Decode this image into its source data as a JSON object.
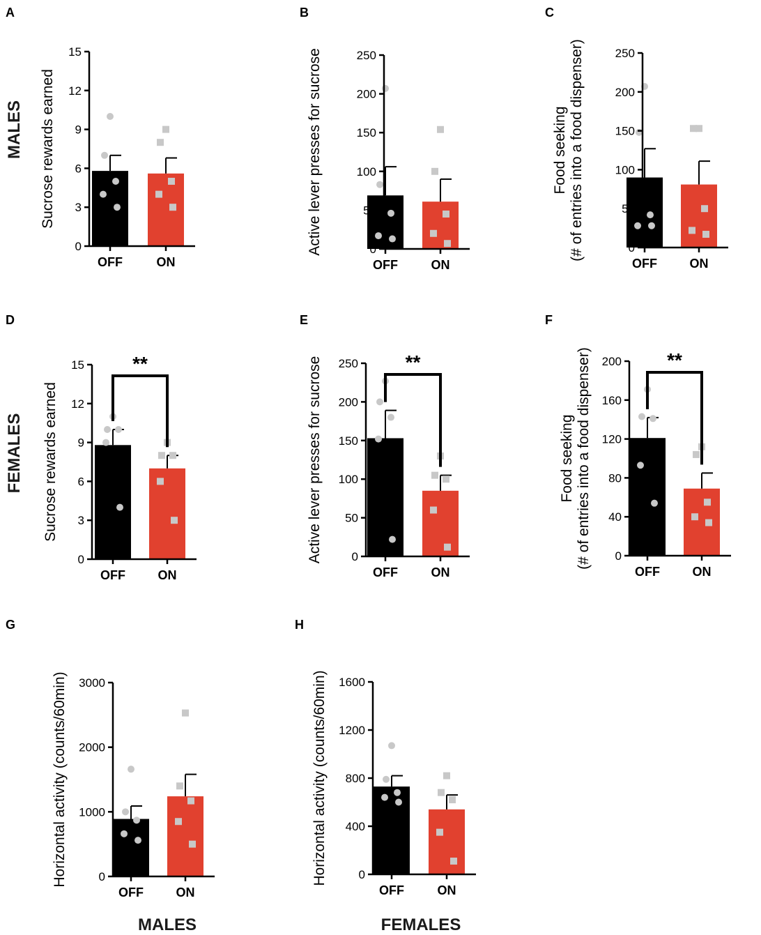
{
  "colors": {
    "off": "#000000",
    "on": "#e1412f",
    "dot": "#c8c8c8"
  },
  "row_labels": {
    "males": "MALES",
    "females": "FEMALES"
  },
  "chart_data": [
    {
      "panel": "A",
      "type": "bar",
      "title": "",
      "ylabel": "Sucrose rewards earned",
      "ylabel_lines": [
        "Sucrose rewards earned"
      ],
      "ylim": [
        0,
        15
      ],
      "yticks": [
        0,
        3,
        6,
        9,
        12,
        15
      ],
      "categories": [
        "OFF",
        "ON"
      ],
      "series": [
        {
          "name": "OFF",
          "mean": 5.8,
          "sem": 1.2,
          "points": [
            10,
            7,
            5,
            4,
            3
          ],
          "marker": "circle"
        },
        {
          "name": "ON",
          "mean": 5.6,
          "sem": 1.2,
          "points": [
            9,
            8,
            5,
            4,
            3
          ],
          "marker": "square"
        }
      ],
      "significance": ""
    },
    {
      "panel": "B",
      "type": "bar",
      "title": "",
      "ylabel": "Active lever presses for sucrose",
      "ylabel_lines": [
        "Active lever presses for sucrose"
      ],
      "ylim": [
        0,
        250
      ],
      "yticks": [
        0,
        50,
        100,
        150,
        200,
        250
      ],
      "categories": [
        "OFF",
        "ON"
      ],
      "series": [
        {
          "name": "OFF",
          "mean": 69,
          "sem": 37,
          "points": [
            207,
            83,
            46,
            17,
            13
          ],
          "marker": "circle"
        },
        {
          "name": "ON",
          "mean": 61,
          "sem": 29,
          "points": [
            154,
            100,
            45,
            20,
            7
          ],
          "marker": "square"
        }
      ],
      "significance": ""
    },
    {
      "panel": "C",
      "type": "bar",
      "title": "",
      "ylabel": "Food seeking (# of entries into a food dispenser)",
      "ylabel_lines": [
        "Food seeking",
        "(# of entries into a food dispenser)"
      ],
      "ylim": [
        0,
        250
      ],
      "yticks": [
        0,
        50,
        100,
        150,
        200,
        250
      ],
      "categories": [
        "OFF",
        "ON"
      ],
      "series": [
        {
          "name": "OFF",
          "mean": 90,
          "sem": 37,
          "points": [
            207,
            148,
            42,
            28,
            28
          ],
          "marker": "circle"
        },
        {
          "name": "ON",
          "mean": 81,
          "sem": 30,
          "points": [
            153,
            153,
            50,
            22,
            17
          ],
          "marker": "square"
        }
      ],
      "significance": ""
    },
    {
      "panel": "D",
      "type": "bar",
      "title": "",
      "ylabel": "Sucrose rewards earned",
      "ylabel_lines": [
        "Sucrose rewards earned"
      ],
      "ylim": [
        0,
        15
      ],
      "yticks": [
        0,
        3,
        6,
        9,
        12,
        15
      ],
      "categories": [
        "OFF",
        "ON"
      ],
      "series": [
        {
          "name": "OFF",
          "mean": 8.8,
          "sem": 1.2,
          "points": [
            11,
            10,
            10,
            9,
            4
          ],
          "marker": "circle"
        },
        {
          "name": "ON",
          "mean": 7.0,
          "sem": 1.0,
          "points": [
            9,
            8,
            8,
            6,
            3
          ],
          "marker": "square"
        }
      ],
      "significance": "**"
    },
    {
      "panel": "E",
      "type": "bar",
      "title": "",
      "ylabel": "Active lever presses for sucrose",
      "ylabel_lines": [
        "Active lever presses for sucrose"
      ],
      "ylim": [
        0,
        250
      ],
      "yticks": [
        0,
        50,
        100,
        150,
        200,
        250
      ],
      "categories": [
        "OFF",
        "ON"
      ],
      "series": [
        {
          "name": "OFF",
          "mean": 153,
          "sem": 36,
          "points": [
            227,
            200,
            180,
            152,
            22
          ],
          "marker": "circle"
        },
        {
          "name": "ON",
          "mean": 85,
          "sem": 20,
          "points": [
            130,
            105,
            100,
            60,
            12
          ],
          "marker": "square"
        }
      ],
      "significance": "**"
    },
    {
      "panel": "F",
      "type": "bar",
      "title": "",
      "ylabel": "Food seeking (# of entries into a food dispenser)",
      "ylabel_lines": [
        "Food seeking",
        "(# of entries into a food dispenser)"
      ],
      "ylim": [
        0,
        200
      ],
      "yticks": [
        0,
        40,
        80,
        120,
        160,
        200
      ],
      "categories": [
        "OFF",
        "ON"
      ],
      "series": [
        {
          "name": "OFF",
          "mean": 121,
          "sem": 21,
          "points": [
            171,
            143,
            141,
            93,
            54
          ],
          "marker": "circle"
        },
        {
          "name": "ON",
          "mean": 69,
          "sem": 16,
          "points": [
            112,
            104,
            55,
            40,
            34
          ],
          "marker": "square"
        }
      ],
      "significance": "**"
    },
    {
      "panel": "G",
      "type": "bar",
      "title": "MALES",
      "ylabel": "Horizontal activity (counts/60min)",
      "ylabel_lines": [
        "Horizontal activity (counts/60min)"
      ],
      "ylim": [
        0,
        3000
      ],
      "yticks": [
        0,
        1000,
        2000,
        3000
      ],
      "categories": [
        "OFF",
        "ON"
      ],
      "series": [
        {
          "name": "OFF",
          "mean": 890,
          "sem": 200,
          "points": [
            1660,
            1000,
            870,
            660,
            560
          ],
          "marker": "circle"
        },
        {
          "name": "ON",
          "mean": 1240,
          "sem": 340,
          "points": [
            2530,
            1400,
            1170,
            850,
            500
          ],
          "marker": "square"
        }
      ],
      "significance": ""
    },
    {
      "panel": "H",
      "type": "bar",
      "title": "FEMALES",
      "ylabel": "Horizontal activity (counts/60min)",
      "ylabel_lines": [
        "Horizontal activity (counts/60min)"
      ],
      "ylim": [
        0,
        1600
      ],
      "yticks": [
        0,
        400,
        800,
        1200,
        1600
      ],
      "categories": [
        "OFF",
        "ON"
      ],
      "series": [
        {
          "name": "OFF",
          "mean": 730,
          "sem": 90,
          "points": [
            1070,
            790,
            680,
            640,
            600
          ],
          "marker": "circle"
        },
        {
          "name": "ON",
          "mean": 540,
          "sem": 120,
          "points": [
            820,
            680,
            620,
            350,
            110
          ],
          "marker": "square"
        }
      ],
      "significance": ""
    }
  ]
}
